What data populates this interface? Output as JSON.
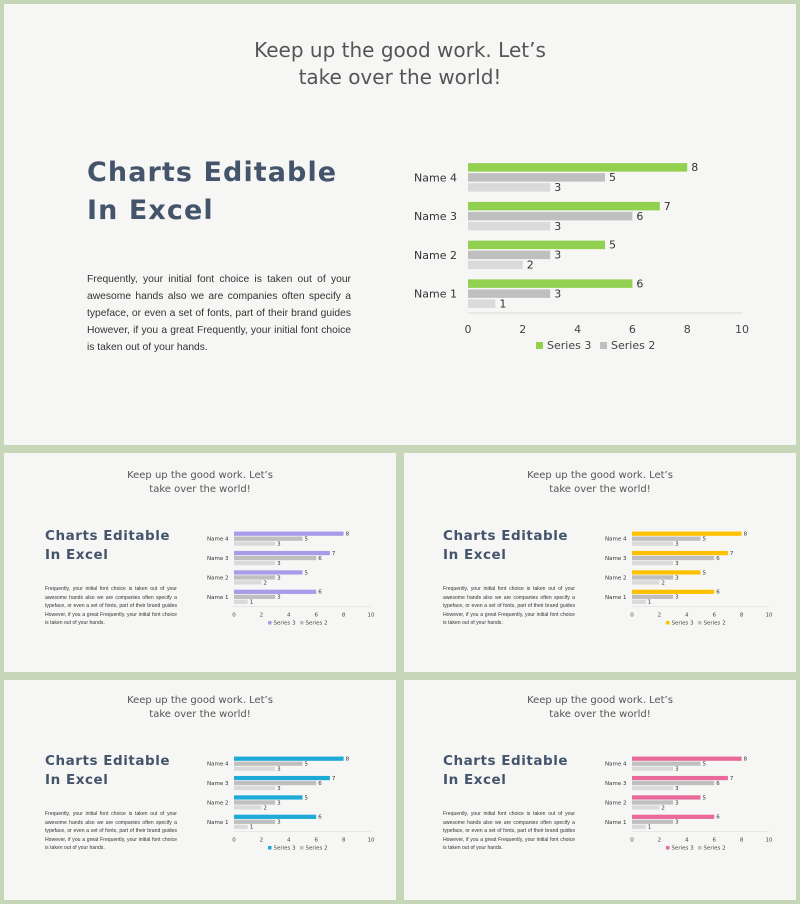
{
  "header": {
    "line1": "Keep up the good work. Let’s",
    "line2": "take over the world!"
  },
  "title": {
    "line1": "Charts Editable",
    "line2": "In Excel"
  },
  "body_text": "Frequently, your initial font choice is taken out of your awesome hands also we are companies often specify a typeface, or even a set of fonts,  part of their brand guides However, if you a great Frequently, your initial font choice is taken out of your hands.",
  "accent_colors": {
    "main": "#92d050",
    "variant_1": "#a99be8",
    "variant_2": "#ffc000",
    "variant_3": "#1eaad6",
    "variant_4": "#e8699a"
  },
  "series2_color": "#bfbfbf",
  "chart_data": {
    "type": "bar",
    "orientation": "horizontal",
    "categories": [
      "Name 1",
      "Name 2",
      "Name 3",
      "Name 4"
    ],
    "series": [
      {
        "name": "Series 3",
        "values": [
          6,
          5,
          7,
          8
        ]
      },
      {
        "name": "Series 2",
        "values": [
          3,
          3,
          6,
          5
        ]
      },
      {
        "name": "",
        "values": [
          1,
          2,
          3,
          3
        ]
      }
    ],
    "xlim": [
      0,
      10
    ],
    "xticks": [
      "0",
      "2",
      "4",
      "6",
      "8",
      "10"
    ],
    "data_labels": true,
    "grid": false,
    "legend": "bottom"
  }
}
